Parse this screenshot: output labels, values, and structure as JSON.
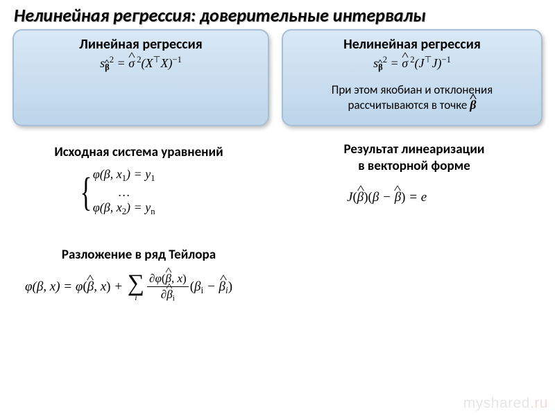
{
  "title": "Нелинейная регрессия: доверительные интервалы",
  "card_left": {
    "title": "Линейная регрессия",
    "formula_html": "s<span class='sub'><span class='hat' style='font-weight:700'>β</span></span><span class='sup'>2</span> = <span class='hat'>σ</span><span class='sup'>&nbsp;2</span>(X<span class='sup upr'>⊤</span>X)<span class='sup'>−1</span>"
  },
  "card_right": {
    "title": "Нелинейная регрессия",
    "formula_html": "s<span class='sub'><span class='hat' style='font-weight:700'>β</span></span><span class='sup'>2</span> = <span class='hat'>σ</span><span class='sup'>&nbsp;2</span>(J<span class='sup upr'>⊤</span>J)<span class='sup'>−1</span>",
    "note_html": "При этом якобиан и отклонения рассчитываются в точке <span class='formula'><span class='hat' style='font-weight:700'>β</span></span>"
  },
  "headings": {
    "orig": "Исходная система уравнений",
    "lin": "Результат линеаризации<br>в векторной форме",
    "taylor": "Разложение в ряд Тейлора"
  },
  "eq": {
    "orig_html": "<span class='brace'>{</span><span class='sys-rows'>φ(β,&nbsp;x<span class='sub'>1</span>) = y<span class='sub'>1</span><br><span class='upr' style='display:block;text-align:center'>…</span>φ(β,&nbsp;x<span class='sub'>2</span>) = y<span class='sub'>n</span></span>",
    "lin_html": "J<span class='upr'>(</span><span class='hat'>β</span><span class='upr'>)(</span>β − <span class='hat'>β</span><span class='upr'>)</span> = e",
    "taylor_html": "φ(β,&nbsp;x) = φ<span class='upr'>(</span><span class='hat'>β</span>,&nbsp;x<span class='upr'>)</span> + <span class='bigop'><span class='sym'>∑</span><span class='lim'>i</span></span><span class='frac'><span class='num'>∂φ<span class='upr'>(</span><span class='hat'>β</span>,&nbsp;x<span class='upr'>)</span></span><span class='den'>∂<span class='hat'>β</span><span class='sub'>i</span></span></span><span class='upr'>(</span>β<span class='sub'>i</span> − <span class='hat'>β<span class='sub' style='font-style:italic'>i</span></span><span class='upr'>)</span>"
  },
  "watermark": {
    "pre": "myshared",
    "accent": ".ru"
  },
  "colors": {
    "card_grad_top": "#d9e8f5",
    "card_grad_bottom": "#bcd5ea",
    "card_border": "#a6bfd6",
    "background": "#ffffff",
    "text": "#000000",
    "watermark": "#e6e6e6",
    "watermark_accent": "#f3dada"
  }
}
